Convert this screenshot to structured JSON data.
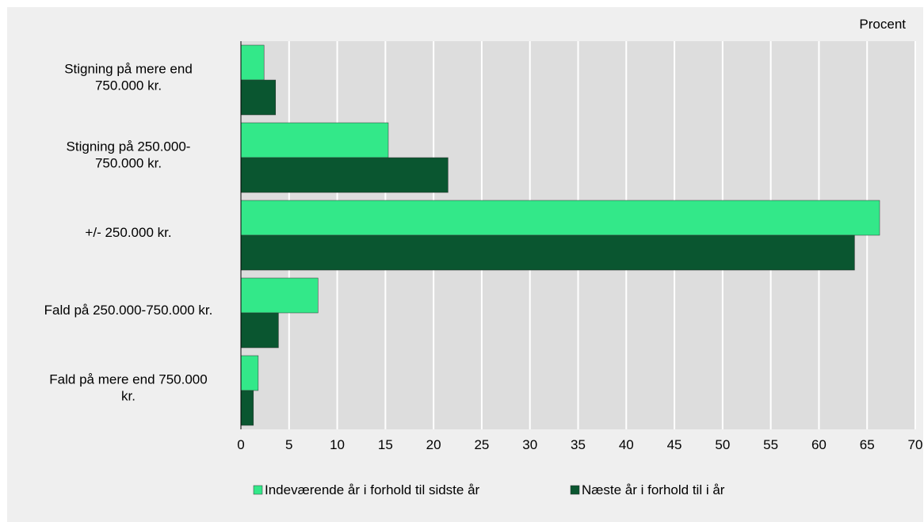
{
  "chart_data": {
    "type": "bar",
    "orientation": "horizontal",
    "unit_label": "Procent",
    "categories": [
      [
        "Stigning på mere end",
        "750.000 kr."
      ],
      [
        "Stigning på 250.000-",
        "750.000 kr."
      ],
      [
        "+/- 250.000 kr."
      ],
      [
        "Fald på 250.000-750.000 kr."
      ],
      [
        "Fald på mere end 750.000",
        "kr."
      ]
    ],
    "series": [
      {
        "name": "Indeværende år i forhold til sidste år",
        "color": "#33e889",
        "values": [
          2.4,
          15.3,
          66.3,
          8.0,
          1.8
        ]
      },
      {
        "name": "Næste år i forhold til i år",
        "color": "#0a5630",
        "values": [
          3.6,
          21.5,
          63.7,
          3.9,
          1.3
        ]
      }
    ],
    "xlim": [
      0,
      70
    ],
    "xticks": [
      0,
      5,
      10,
      15,
      20,
      25,
      30,
      35,
      40,
      45,
      50,
      55,
      60,
      65,
      70
    ],
    "grid": true,
    "legend_position": "bottom"
  }
}
